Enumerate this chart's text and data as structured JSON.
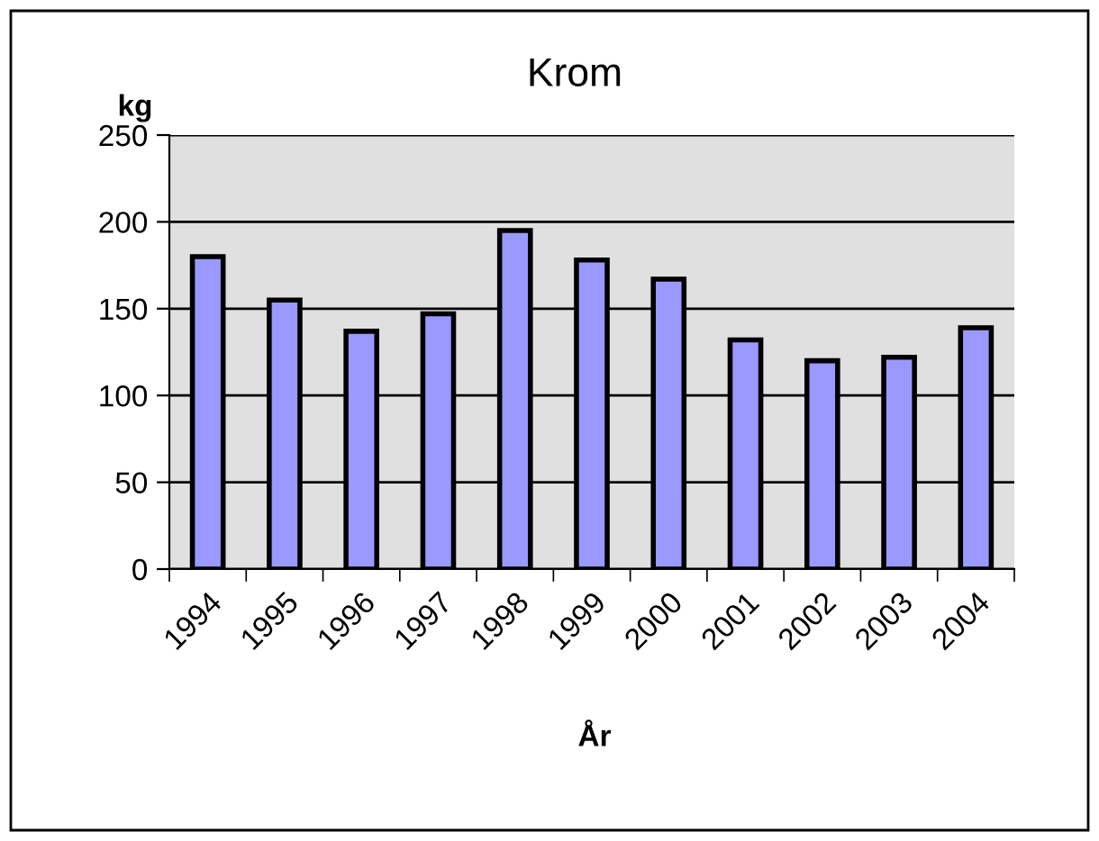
{
  "chart_data": {
    "type": "bar",
    "title": "Krom",
    "ylabel": "kg",
    "xlabel": "År",
    "categories": [
      "1994",
      "1995",
      "1996",
      "1997",
      "1998",
      "1999",
      "2000",
      "2001",
      "2002",
      "2003",
      "2004"
    ],
    "values": [
      180,
      155,
      137,
      147,
      195,
      178,
      167,
      132,
      120,
      122,
      139
    ],
    "color": "#9999ff",
    "ylim": [
      0,
      250
    ],
    "yticks": [
      0,
      50,
      100,
      150,
      200,
      250
    ],
    "grid": "y",
    "legend": false
  }
}
